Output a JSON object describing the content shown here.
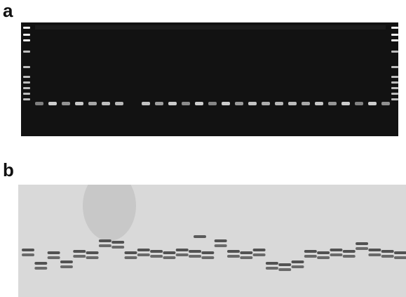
{
  "figure": {
    "panel_a_label": "a",
    "panel_b_label": "b"
  },
  "colors": {
    "gel_background": "#121212",
    "gel_band": "#d8d8d8",
    "blot_background": "#d9d9d9",
    "blot_band": "#3a3a3a"
  },
  "panel_a": {
    "lane_count": 27,
    "marker_lanes": 2
  },
  "panel_b": {
    "lane_count": 30,
    "lane_band_levels": [
      1,
      2,
      1,
      2,
      1,
      1,
      0,
      0,
      1,
      1,
      1,
      1,
      1,
      1,
      1,
      0,
      1,
      1,
      1,
      2,
      2,
      2,
      1,
      1,
      1,
      1,
      0,
      1,
      1,
      1
    ]
  }
}
